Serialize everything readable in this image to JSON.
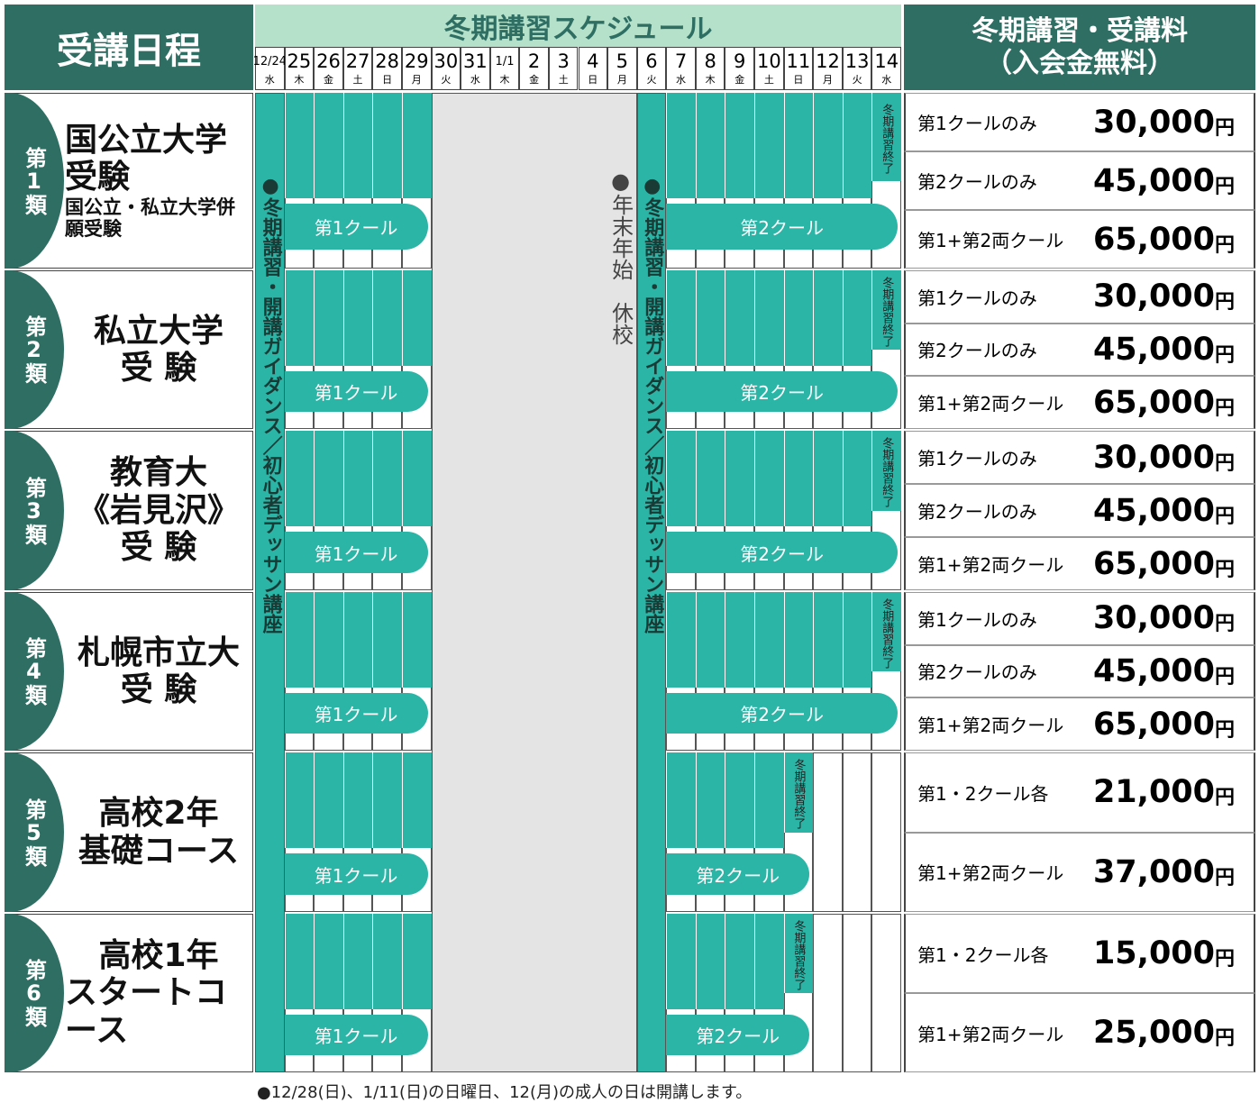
{
  "header": {
    "left_title": "受講日程",
    "schedule_title": "冬期講習スケジュール",
    "fee_title": "冬期講習・受講料",
    "fee_subtitle": "（入会金無料）"
  },
  "days": [
    {
      "date": "12/24",
      "weekday": "水"
    },
    {
      "date": "25",
      "weekday": "木"
    },
    {
      "date": "26",
      "weekday": "金"
    },
    {
      "date": "27",
      "weekday": "土"
    },
    {
      "date": "28",
      "weekday": "日"
    },
    {
      "date": "29",
      "weekday": "月"
    },
    {
      "date": "30",
      "weekday": "火"
    },
    {
      "date": "31",
      "weekday": "水"
    },
    {
      "date": "1/1",
      "weekday": "木"
    },
    {
      "date": "2",
      "weekday": "金"
    },
    {
      "date": "3",
      "weekday": "土"
    },
    {
      "date": "4",
      "weekday": "日"
    },
    {
      "date": "5",
      "weekday": "月"
    },
    {
      "date": "6",
      "weekday": "火"
    },
    {
      "date": "7",
      "weekday": "水"
    },
    {
      "date": "8",
      "weekday": "木"
    },
    {
      "date": "9",
      "weekday": "金"
    },
    {
      "date": "10",
      "weekday": "土"
    },
    {
      "date": "11",
      "weekday": "日"
    },
    {
      "date": "12",
      "weekday": "月"
    },
    {
      "date": "13",
      "weekday": "火"
    },
    {
      "date": "14",
      "weekday": "水"
    }
  ],
  "guidance": "●冬期講習・開講ガイダンス／初心者デッサン講座",
  "holiday": "●年末年始　休校",
  "course_end": "冬期講習終了",
  "cool1": "第1クール",
  "cool2": "第2クール",
  "currency": "円",
  "groups": [
    {
      "category": "第1類",
      "titles": [
        "国公立大学受験",
        "国公立・私立大学併願受験"
      ],
      "prices": [
        {
          "label": "第1クールのみ",
          "price": "30,000"
        },
        {
          "label": "第2クールのみ",
          "price": "45,000"
        },
        {
          "label": "第1+第2両クール",
          "price": "65,000"
        }
      ]
    },
    {
      "category": "第2類",
      "titles": [
        "私立大学",
        "受 験"
      ],
      "prices": [
        {
          "label": "第1クールのみ",
          "price": "30,000"
        },
        {
          "label": "第2クールのみ",
          "price": "45,000"
        },
        {
          "label": "第1+第2両クール",
          "price": "65,000"
        }
      ]
    },
    {
      "category": "第3類",
      "titles": [
        "教育大",
        "《岩見沢》",
        "受 験"
      ],
      "prices": [
        {
          "label": "第1クールのみ",
          "price": "30,000"
        },
        {
          "label": "第2クールのみ",
          "price": "45,000"
        },
        {
          "label": "第1+第2両クール",
          "price": "65,000"
        }
      ]
    },
    {
      "category": "第4類",
      "titles": [
        "札幌市立大",
        "受 験"
      ],
      "prices": [
        {
          "label": "第1クールのみ",
          "price": "30,000"
        },
        {
          "label": "第2クールのみ",
          "price": "45,000"
        },
        {
          "label": "第1+第2両クール",
          "price": "65,000"
        }
      ]
    },
    {
      "category": "第5類",
      "titles": [
        "高校2年",
        "基礎コース"
      ],
      "prices": [
        {
          "label": "第1・2クール各",
          "price": "21,000"
        },
        {
          "label": "第1+第2両クール",
          "price": "37,000"
        }
      ]
    },
    {
      "category": "第6類",
      "titles": [
        "高校1年",
        "スタートコース"
      ],
      "prices": [
        {
          "label": "第1・2クール各",
          "price": "15,000"
        },
        {
          "label": "第1+第2両クール",
          "price": "25,000"
        }
      ]
    }
  ],
  "footnote": "●12/28(日)、1/11(日)の日曜日、12(月)の成人の日は開講します。"
}
